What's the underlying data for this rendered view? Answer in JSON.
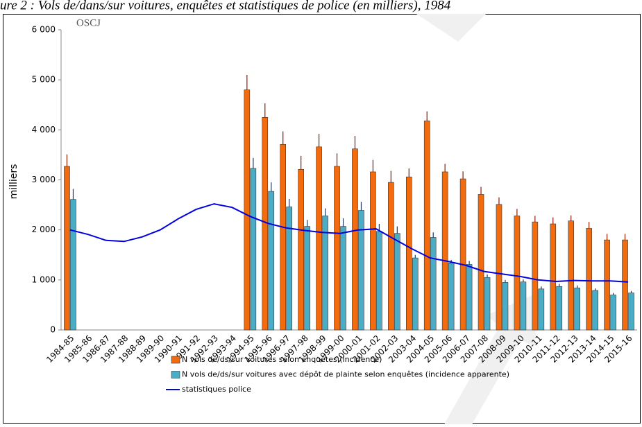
{
  "chart_data": {
    "type": "bar",
    "title": "ure 2 : Vols de/dans/sur voitures, enquêtes et statistiques de police (en milliers), 1984",
    "logo": "OSCJ",
    "y_label": "milliers",
    "categories": [
      "1984-85",
      "1985-86",
      "1986-87",
      "1987-88",
      "1988-89",
      "1989-90",
      "1990-91",
      "1991-92",
      "1992-93",
      "1993-94",
      "1994-95",
      "1995-96",
      "1996-97",
      "1997-98",
      "1998-99",
      "1999-00",
      "2000-01",
      "2001-02",
      "2002-03",
      "2003-04",
      "2004-05",
      "2005-06",
      "2006-07",
      "2007-08",
      "2008-09",
      "2009-10",
      "2010-11",
      "2011-12",
      "2012-13",
      "2013-14",
      "2014-15",
      "2015-16"
    ],
    "series": [
      {
        "name": "N vols de/ds/sur voitures selon enquêtes (incidence)",
        "type": "bar",
        "color": "#f26b0f",
        "error_color": "#8b1a00",
        "values": [
          3270,
          null,
          null,
          null,
          null,
          null,
          null,
          null,
          null,
          null,
          4800,
          4250,
          3710,
          3210,
          3660,
          3270,
          3620,
          3160,
          2950,
          3060,
          4180,
          3160,
          3020,
          2710,
          2510,
          2280,
          2160,
          2120,
          2180,
          2030,
          1800,
          1800
        ],
        "errors": [
          240,
          null,
          null,
          null,
          null,
          null,
          null,
          null,
          null,
          null,
          300,
          280,
          260,
          270,
          260,
          260,
          260,
          240,
          230,
          170,
          190,
          160,
          150,
          150,
          140,
          140,
          120,
          130,
          110,
          130,
          120,
          120
        ]
      },
      {
        "name": "N vols de/ds/sur voitures avec dépôt de plainte selon enquêtes (incidence apparente)",
        "type": "bar",
        "color": "#4bacc6",
        "error_color": "#1f3864",
        "values": [
          2610,
          null,
          null,
          null,
          null,
          null,
          null,
          null,
          null,
          null,
          3230,
          2770,
          2460,
          2070,
          2280,
          2070,
          2390,
          1970,
          1930,
          1440,
          1850,
          1340,
          1310,
          1050,
          950,
          960,
          820,
          870,
          840,
          790,
          700,
          740
        ],
        "errors": [
          210,
          null,
          null,
          null,
          null,
          null,
          null,
          null,
          null,
          null,
          210,
          180,
          160,
          130,
          150,
          160,
          170,
          150,
          140,
          60,
          100,
          60,
          70,
          60,
          50,
          50,
          50,
          50,
          50,
          40,
          40,
          40
        ]
      },
      {
        "name": "statistiques police",
        "type": "line",
        "color": "#0000e0",
        "values": [
          2000,
          1910,
          1790,
          1770,
          1860,
          2000,
          2220,
          2410,
          2520,
          2450,
          2270,
          2130,
          2040,
          1990,
          1950,
          1930,
          2000,
          2020,
          1820,
          1620,
          1440,
          1370,
          1290,
          1170,
          1120,
          1070,
          1000,
          970,
          990,
          980,
          980,
          960
        ]
      }
    ],
    "ylim": [
      0,
      6000
    ],
    "yticks": [
      0,
      {
        "value": 1000,
        "label": "1 000"
      },
      {
        "value": 2000,
        "label": "2 000"
      },
      {
        "value": 3000,
        "label": "3 000"
      },
      {
        "value": 4000,
        "label": "4 000"
      },
      {
        "value": 5000,
        "label": "5 000"
      },
      {
        "value": 6000,
        "label": "6 000"
      }
    ],
    "grid": false
  }
}
